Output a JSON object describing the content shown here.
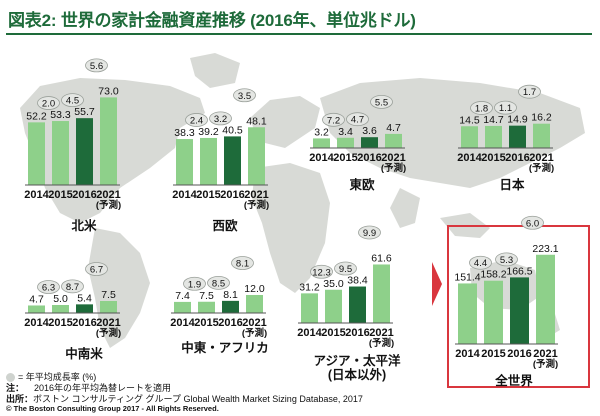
{
  "title": "図表2: 世界の家計金融資産推移 (2016年、単位兆ドル)",
  "colors": {
    "title": "#1e6b3a",
    "bar": "#8ed08a",
    "bar_highlight": "#1e6b3a",
    "map": "#d8dad6",
    "callout_border": "#d9363e"
  },
  "chart_data": [
    {
      "type": "bar",
      "region": "北米",
      "categories": [
        "2014",
        "2015",
        "2016",
        "2021\n(予測)"
      ],
      "values": [
        52.2,
        53.3,
        55.7,
        73.0
      ],
      "growth": [
        "2.0",
        "4.5",
        "5.6"
      ]
    },
    {
      "type": "bar",
      "region": "西欧",
      "categories": [
        "2014",
        "2015",
        "2016",
        "2021\n(予測)"
      ],
      "values": [
        38.3,
        39.2,
        40.5,
        48.1
      ],
      "growth": [
        "2.4",
        "3.2",
        "3.5"
      ]
    },
    {
      "type": "bar",
      "region": "東欧",
      "categories": [
        "2014",
        "2015",
        "2016",
        "2021\n(予測)"
      ],
      "values": [
        3.2,
        3.4,
        3.6,
        4.7
      ],
      "growth": [
        "7.2",
        "4.7",
        "5.5"
      ]
    },
    {
      "type": "bar",
      "region": "日本",
      "categories": [
        "2014",
        "2015",
        "2016",
        "2021\n(予測)"
      ],
      "values": [
        14.5,
        14.7,
        14.9,
        16.2
      ],
      "growth": [
        "1.8",
        "1.1",
        "1.7"
      ]
    },
    {
      "type": "bar",
      "region": "中南米",
      "categories": [
        "2014",
        "2015",
        "2016",
        "2021\n(予測)"
      ],
      "values": [
        4.7,
        5.0,
        5.4,
        7.5
      ],
      "growth": [
        "6.3",
        "8.7",
        "6.7"
      ]
    },
    {
      "type": "bar",
      "region": "中東・アフリカ",
      "categories": [
        "2014",
        "2015",
        "2016",
        "2021\n(予測)"
      ],
      "values": [
        7.4,
        7.5,
        8.1,
        12.0
      ],
      "growth": [
        "1.9",
        "8.5",
        "8.1"
      ]
    },
    {
      "type": "bar",
      "region": "アジア・太平洋\n(日本以外)",
      "categories": [
        "2014",
        "2015",
        "2016",
        "2021\n(予測)"
      ],
      "values": [
        31.2,
        35.0,
        38.4,
        61.6
      ],
      "growth": [
        "12.3",
        "9.5",
        "9.9"
      ]
    },
    {
      "type": "bar",
      "region": "全世界",
      "categories": [
        "2014",
        "2015",
        "2016",
        "2021\n(予測)"
      ],
      "values": [
        151.4,
        158.2,
        166.5,
        223.1
      ],
      "growth": [
        "4.4",
        "5.3",
        "6.0"
      ]
    }
  ],
  "legend": {
    "growth_label": "= 年平均成長率 (%)"
  },
  "footnotes": {
    "note_label": "注：",
    "note_text": "2016年の年平均為替レートを適用",
    "source_label": "出所：",
    "source_text": "ボストン コンサルティング グループ Global Wealth Market Sizing Database, 2017",
    "copyright": "© The Boston Consulting Group 2017 - All Rights Reserved."
  }
}
